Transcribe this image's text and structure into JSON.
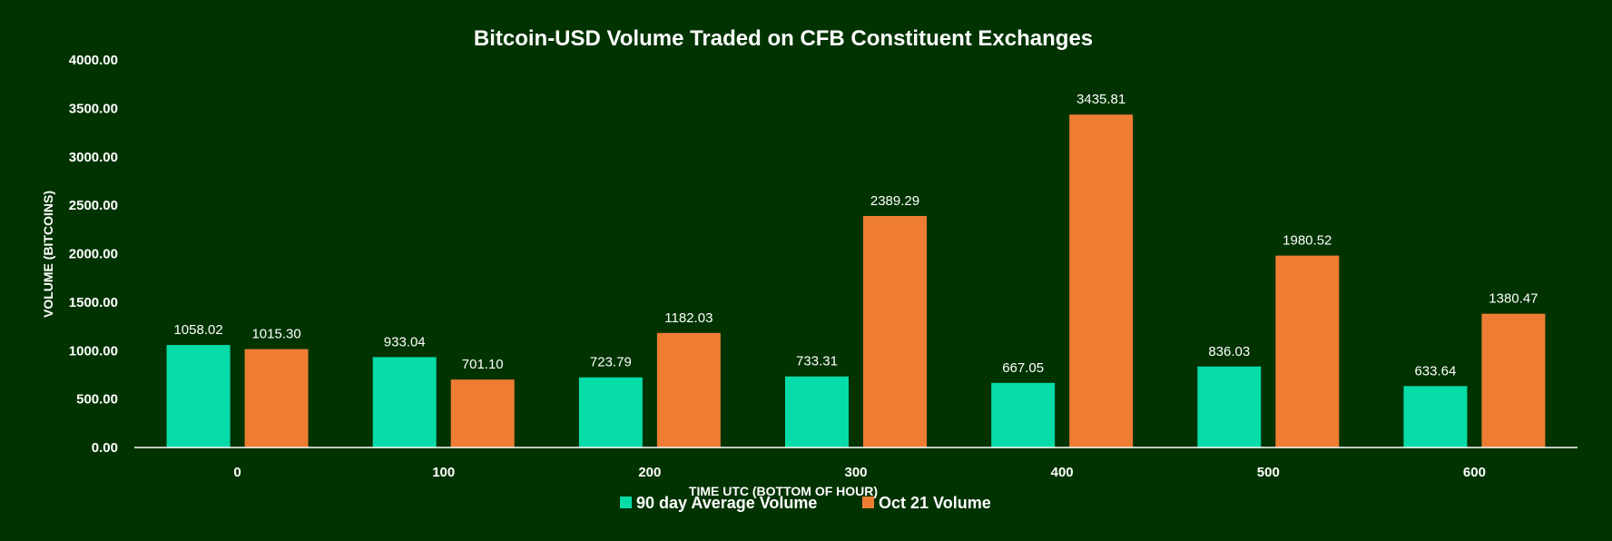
{
  "chart_data": {
    "type": "bar",
    "title": "Bitcoin-USD Volume Traded on CFB Constituent Exchanges",
    "xlabel": "TIME UTC (BOTTOM OF HOUR)",
    "ylabel": "VOLUME (BITCOINS)",
    "categories": [
      "0",
      "100",
      "200",
      "300",
      "400",
      "500",
      "600"
    ],
    "series": [
      {
        "name": "90 day Average Volume",
        "color": "#06DCA8",
        "values": [
          1058.02,
          933.04,
          723.79,
          733.31,
          667.05,
          836.03,
          633.64
        ],
        "labels": [
          "1058.02",
          "933.04",
          "723.79",
          "733.31",
          "667.05",
          "836.03",
          "633.64"
        ]
      },
      {
        "name": "Oct 21 Volume",
        "color": "#EE7D33",
        "values": [
          1015.3,
          701.1,
          1182.03,
          2389.29,
          3435.81,
          1980.52,
          1380.47
        ],
        "labels": [
          "1015.30",
          "701.10",
          "1182.03",
          "2389.29",
          "3435.81",
          "1980.52",
          "1380.47"
        ]
      }
    ],
    "ylim": [
      0,
      4000
    ],
    "yticks": [
      "0.00",
      "500.00",
      "1000.00",
      "1500.00",
      "2000.00",
      "2500.00",
      "3000.00",
      "3500.00",
      "4000.00"
    ],
    "grid": false,
    "legend": "bottom"
  },
  "colors": {
    "background": "#013300",
    "axis_line": "#FFFFFF"
  }
}
